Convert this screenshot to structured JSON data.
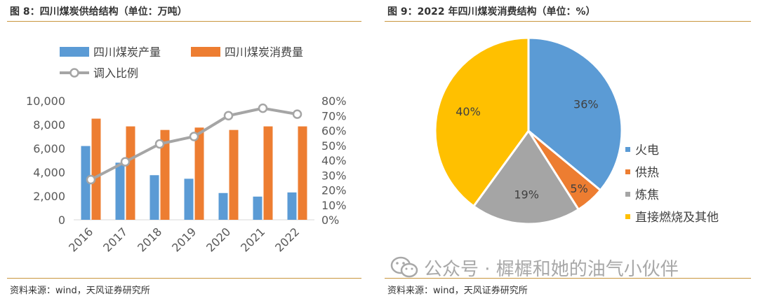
{
  "left": {
    "fig_title": "图 8：四川煤炭供给结构（单位：万吨）",
    "source": "资料来源：wind，天风证券研究所"
  },
  "right": {
    "fig_title": "图 9：2022 年四川煤炭消费结构（单位：%）",
    "source": "资料来源：wind，天风证券研究所"
  },
  "watermark": {
    "text": "公众号 · 樨樨和她的油气小伙伴",
    "icon": "wechat-icon"
  },
  "colors": {
    "blue": "#5b9bd5",
    "orange": "#ed7d31",
    "gray": "#a5a5a5",
    "gold": "#ffc000",
    "rule": "#c8963e"
  },
  "chart_data": [
    {
      "type": "bar",
      "categories": [
        "2016",
        "2017",
        "2018",
        "2019",
        "2020",
        "2021",
        "2022"
      ],
      "series": [
        {
          "name": "四川煤炭产量",
          "kind": "bar",
          "axis": "left",
          "color": "#5b9bd5",
          "values": [
            6200,
            4800,
            3750,
            3450,
            2250,
            1950,
            2300
          ]
        },
        {
          "name": "四川煤炭消费量",
          "kind": "bar",
          "axis": "left",
          "color": "#ed7d31",
          "values": [
            8500,
            7850,
            7550,
            7750,
            7550,
            7850,
            7850
          ]
        },
        {
          "name": "调入比例",
          "kind": "line",
          "axis": "right",
          "color": "#a5a5a5",
          "values": [
            27,
            39,
            51,
            56,
            70,
            75,
            71
          ]
        }
      ],
      "ylim": [
        0,
        10000
      ],
      "y_ticks": [
        "0",
        "2,000",
        "4,000",
        "6,000",
        "8,000",
        "10,000"
      ],
      "y2lim": [
        0,
        80
      ],
      "y2_ticks": [
        "0%",
        "10%",
        "20%",
        "30%",
        "40%",
        "50%",
        "60%",
        "70%",
        "80%"
      ],
      "grid": true,
      "legend": "top"
    },
    {
      "type": "pie",
      "labels": [
        "火电",
        "供热",
        "炼焦",
        "直接燃烧及其他"
      ],
      "values": [
        36,
        5,
        19,
        40
      ],
      "value_labels": [
        "36%",
        "5%",
        "19%",
        "40%"
      ],
      "colors": [
        "#5b9bd5",
        "#ed7d31",
        "#a5a5a5",
        "#ffc000"
      ],
      "legend": "right"
    }
  ]
}
